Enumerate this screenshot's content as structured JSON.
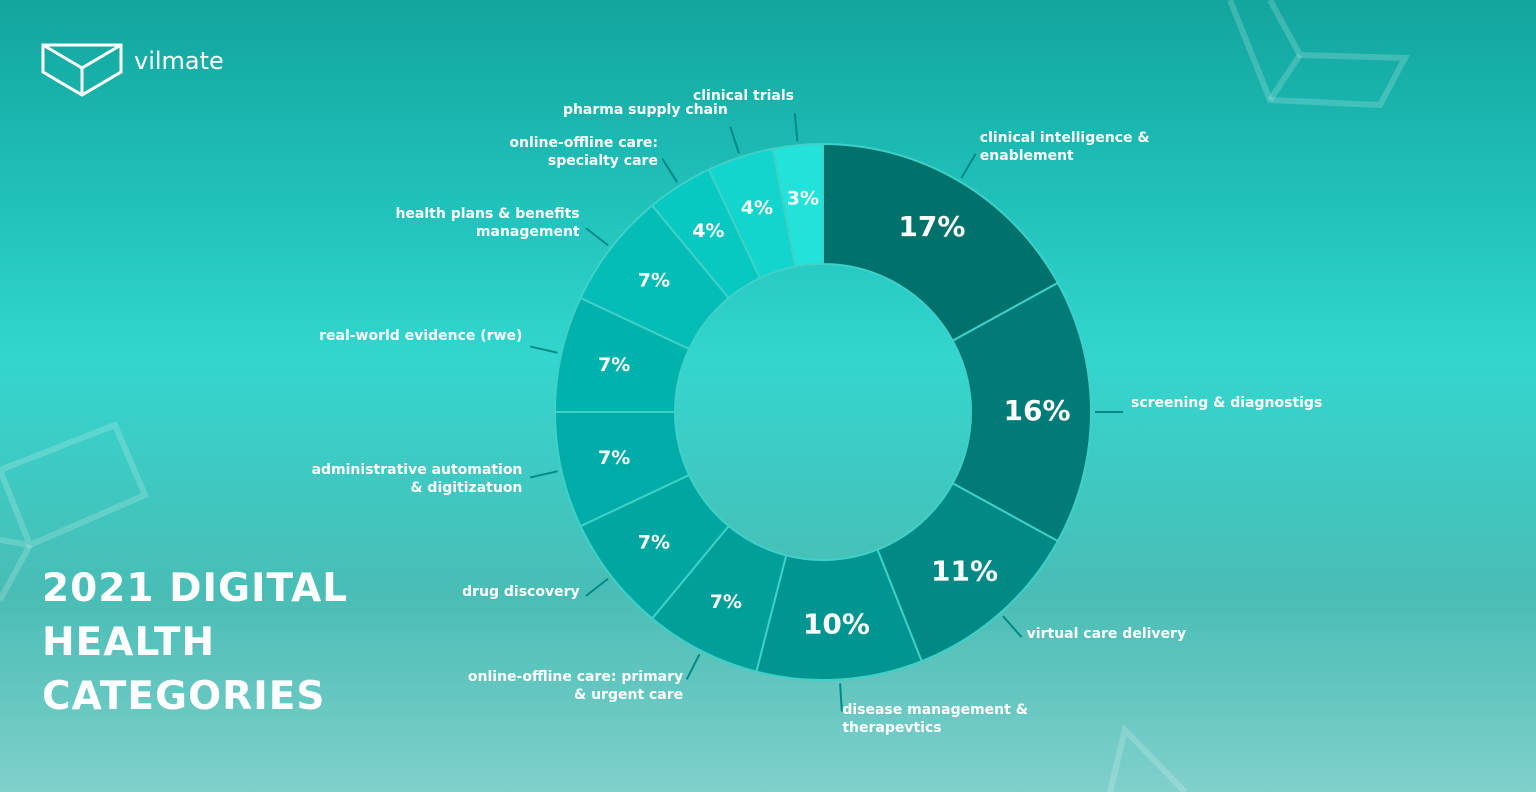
{
  "logo": "vilmate",
  "chart_data": {
    "type": "donut",
    "title": "2021 DIGITAL HEALTH CATEGORIES",
    "categories": [
      "clinical intelligence & enablement",
      "screening & diagnostigs",
      "virtual care delivery",
      "disease management & therapevtics",
      "online-offline care: primary & urgent care",
      "drug discovery",
      "administrative automation & digitizatuon",
      "real-world evidence (rwe)",
      "health plans & benefits management",
      "online-offline care: specialty care",
      "pharma supply chain",
      "clinical trials"
    ],
    "values": [
      17,
      16,
      11,
      10,
      7,
      7,
      7,
      7,
      7,
      4,
      4,
      3
    ],
    "value_labels": [
      "17%",
      "16%",
      "11%",
      "10%",
      "7%",
      "7%",
      "7%",
      "7%",
      "7%",
      "4%",
      "4%",
      "3%"
    ],
    "colors": [
      "#00716b",
      "#007b78",
      "#008985",
      "#009591",
      "#009f9a",
      "#00a7a1",
      "#00aca7",
      "#00b2ac",
      "#03bdb6",
      "#08c9c2",
      "#12d5cd",
      "#22e2da"
    ]
  }
}
